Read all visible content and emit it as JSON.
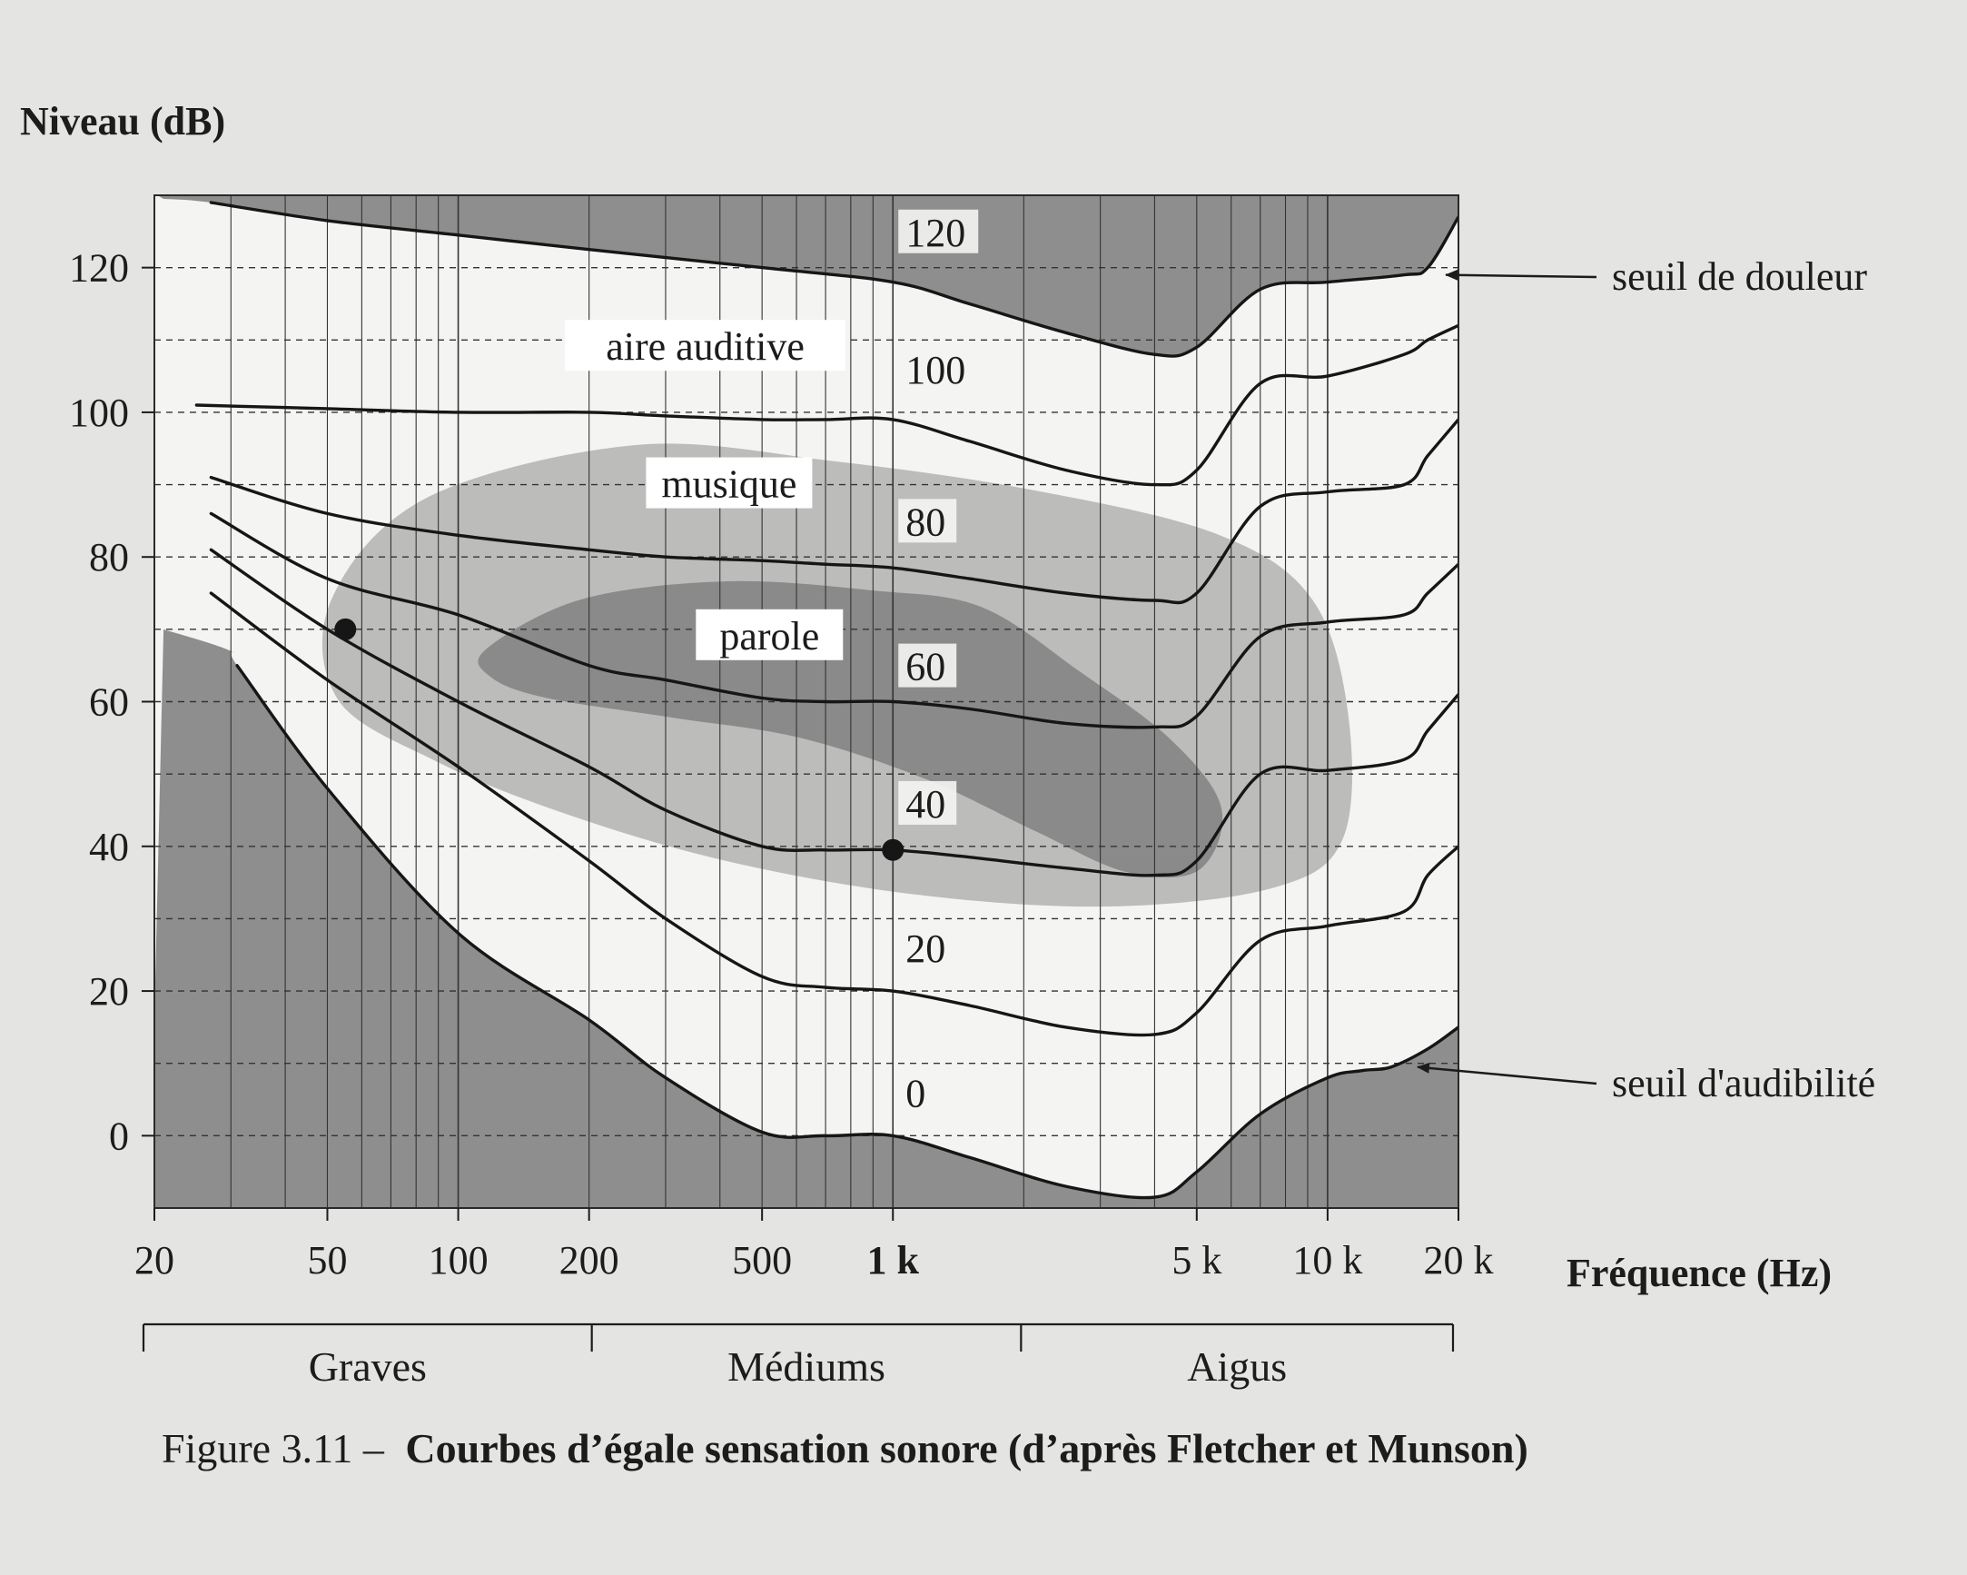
{
  "figure": {
    "caption_prefix": "Figure 3.11 –",
    "caption_title": "Courbes d’égale sensation sonore (d’après Fletcher et Munson)"
  },
  "bands": [
    {
      "label": "Graves",
      "range_hz": [
        20,
        200
      ]
    },
    {
      "label": "Médiums",
      "range_hz": [
        200,
        2000
      ]
    },
    {
      "label": "Aigus",
      "range_hz": [
        2000,
        20000
      ]
    }
  ],
  "chart_data": {
    "type": "line",
    "title": "",
    "ylabel": "Niveau (dB)",
    "xlabel": "Fréquence (Hz)",
    "xscale": "log",
    "xlim": [
      20,
      20000
    ],
    "ylim": [
      -10,
      130
    ],
    "grid": true,
    "x_ticks": [
      {
        "value": 20,
        "label": "20",
        "bold": false
      },
      {
        "value": 50,
        "label": "50",
        "bold": false
      },
      {
        "value": 100,
        "label": "100",
        "bold": false
      },
      {
        "value": 200,
        "label": "200",
        "bold": false
      },
      {
        "value": 500,
        "label": "500",
        "bold": false
      },
      {
        "value": 1000,
        "label": "1 k",
        "bold": true
      },
      {
        "value": 5000,
        "label": "5 k",
        "bold": false
      },
      {
        "value": 10000,
        "label": "10 k",
        "bold": false
      },
      {
        "value": 20000,
        "label": "20 k",
        "bold": false
      }
    ],
    "y_ticks": [
      {
        "value": 0,
        "label": "0"
      },
      {
        "value": 20,
        "label": "20"
      },
      {
        "value": 40,
        "label": "40"
      },
      {
        "value": 60,
        "label": "60"
      },
      {
        "value": 80,
        "label": "80"
      },
      {
        "value": 100,
        "label": "100"
      },
      {
        "value": 120,
        "label": "120"
      }
    ],
    "minor_dashed_y": [
      -10,
      10,
      30,
      50,
      70,
      90,
      110
    ],
    "series": [
      {
        "name": "0",
        "label_at": [
          1000,
          4
        ],
        "points": [
          [
            31,
            65
          ],
          [
            50,
            48
          ],
          [
            100,
            28
          ],
          [
            200,
            16
          ],
          [
            300,
            8
          ],
          [
            500,
            0.5
          ],
          [
            700,
            0
          ],
          [
            1000,
            0
          ],
          [
            1500,
            -3
          ],
          [
            2500,
            -7
          ],
          [
            4000,
            -8.5
          ],
          [
            5000,
            -5
          ],
          [
            7000,
            3
          ],
          [
            10000,
            8
          ],
          [
            12000,
            9
          ],
          [
            14000,
            9.5
          ],
          [
            17000,
            12
          ],
          [
            20000,
            15
          ]
        ]
      },
      {
        "name": "20",
        "label_at": [
          1000,
          24
        ],
        "points": [
          [
            27,
            75
          ],
          [
            50,
            63
          ],
          [
            100,
            51
          ],
          [
            200,
            38
          ],
          [
            300,
            30
          ],
          [
            500,
            22
          ],
          [
            700,
            20.5
          ],
          [
            1000,
            20
          ],
          [
            1500,
            18
          ],
          [
            2500,
            15
          ],
          [
            4000,
            14
          ],
          [
            5000,
            17
          ],
          [
            7000,
            27
          ],
          [
            10000,
            29
          ],
          [
            15000,
            31
          ],
          [
            17000,
            36
          ],
          [
            20000,
            40
          ]
        ]
      },
      {
        "name": "40",
        "label_at": [
          1000,
          44
        ],
        "points": [
          [
            27,
            81
          ],
          [
            50,
            70
          ],
          [
            100,
            60
          ],
          [
            200,
            51
          ],
          [
            300,
            45
          ],
          [
            500,
            40
          ],
          [
            700,
            39.5
          ],
          [
            1000,
            39.5
          ],
          [
            1500,
            38.5
          ],
          [
            2500,
            37
          ],
          [
            4000,
            36
          ],
          [
            5000,
            38
          ],
          [
            7000,
            50
          ],
          [
            10000,
            50.5
          ],
          [
            15000,
            52
          ],
          [
            17000,
            56
          ],
          [
            20000,
            61
          ]
        ]
      },
      {
        "name": "60",
        "label_at": [
          1000,
          63
        ],
        "points": [
          [
            27,
            86
          ],
          [
            50,
            77
          ],
          [
            100,
            72
          ],
          [
            200,
            65
          ],
          [
            300,
            63
          ],
          [
            500,
            60.5
          ],
          [
            700,
            60
          ],
          [
            1000,
            60
          ],
          [
            1500,
            59
          ],
          [
            2500,
            57
          ],
          [
            4000,
            56.5
          ],
          [
            5000,
            58
          ],
          [
            7000,
            69
          ],
          [
            10000,
            71
          ],
          [
            15000,
            72
          ],
          [
            17000,
            75
          ],
          [
            20000,
            79
          ]
        ]
      },
      {
        "name": "80",
        "label_at": [
          1000,
          83
        ],
        "points": [
          [
            27,
            91
          ],
          [
            50,
            86
          ],
          [
            100,
            83
          ],
          [
            200,
            81
          ],
          [
            300,
            80
          ],
          [
            500,
            79.5
          ],
          [
            700,
            79
          ],
          [
            1000,
            78.5
          ],
          [
            1500,
            77
          ],
          [
            2500,
            75
          ],
          [
            4000,
            74
          ],
          [
            5000,
            75
          ],
          [
            7000,
            87
          ],
          [
            10000,
            89
          ],
          [
            15000,
            90
          ],
          [
            17000,
            94
          ],
          [
            20000,
            99
          ]
        ]
      },
      {
        "name": "100",
        "label_at": [
          1000,
          104
        ],
        "points": [
          [
            25,
            101
          ],
          [
            50,
            100.5
          ],
          [
            100,
            100
          ],
          [
            200,
            100
          ],
          [
            300,
            99.5
          ],
          [
            500,
            99
          ],
          [
            700,
            99
          ],
          [
            1000,
            99
          ],
          [
            1500,
            96
          ],
          [
            2500,
            92
          ],
          [
            4000,
            90
          ],
          [
            5000,
            92
          ],
          [
            7000,
            104
          ],
          [
            10000,
            105
          ],
          [
            15000,
            108
          ],
          [
            17000,
            110
          ],
          [
            20000,
            112
          ]
        ]
      },
      {
        "name": "120",
        "label_at": [
          1000,
          123
        ],
        "points": [
          [
            27,
            129
          ],
          [
            50,
            126.5
          ],
          [
            100,
            124.5
          ],
          [
            200,
            122.5
          ],
          [
            500,
            120
          ],
          [
            1000,
            118
          ],
          [
            1500,
            115
          ],
          [
            2500,
            111
          ],
          [
            4000,
            108
          ],
          [
            5000,
            109
          ],
          [
            7000,
            117
          ],
          [
            10000,
            118
          ],
          [
            15000,
            119
          ],
          [
            17000,
            120
          ],
          [
            20000,
            127
          ]
        ]
      }
    ],
    "markers": [
      {
        "x": 55,
        "y": 70
      },
      {
        "x": 1000,
        "y": 39.5
      }
    ],
    "region_labels": [
      {
        "text": "aire auditive",
        "x": 370,
        "y": 108
      },
      {
        "text": "musique",
        "x": 420,
        "y": 89
      },
      {
        "text": "parole",
        "x": 520,
        "y": 68
      }
    ],
    "annotations": [
      {
        "text": "seuil de douleur",
        "target": [
          18000,
          119
        ]
      },
      {
        "text": "seuil d'audibilité",
        "target": [
          15500,
          9.5
        ]
      }
    ],
    "colors": {
      "background": "#e4e4e2",
      "plot_light": "#f4f4f3",
      "shade_dark": "#8e8e8e",
      "shade_music": "#bcbcbb",
      "shade_speech": "#8a8a8a",
      "curve": "#161616",
      "grid": "#333333"
    }
  }
}
